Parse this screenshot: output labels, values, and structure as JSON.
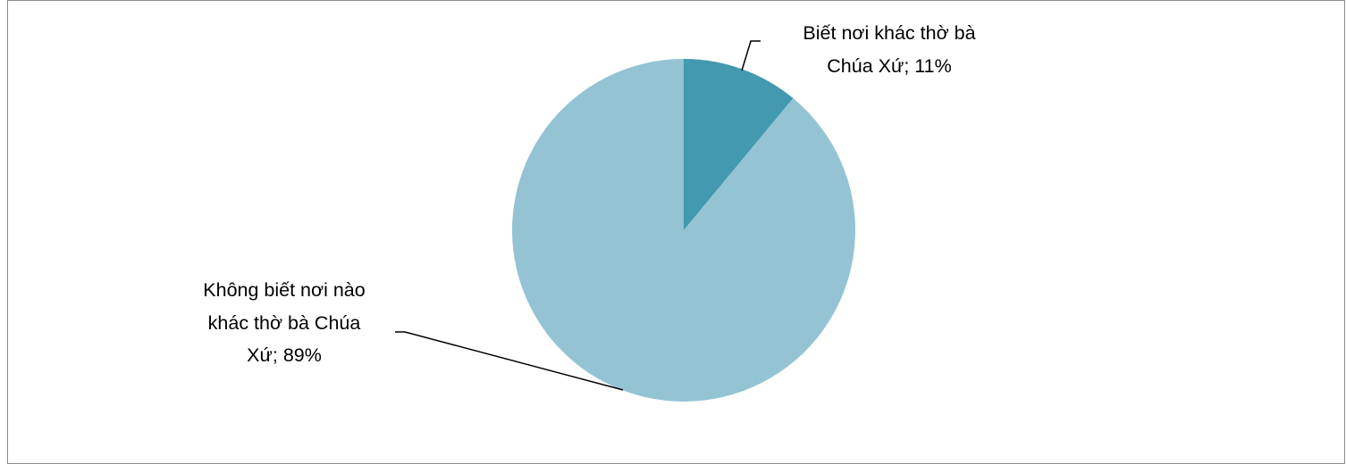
{
  "chart_data": {
    "type": "pie",
    "title": "",
    "slices": [
      {
        "label_lines": [
          "Biết nơi khác thờ bà",
          "Chúa Xứ; 11%"
        ],
        "value": 11,
        "color": "#4399ae"
      },
      {
        "label_lines": [
          "Không biết nơi nào",
          "khác thờ bà Chúa",
          "Xứ; 89%"
        ],
        "value": 89,
        "color": "#94c3d4"
      }
    ],
    "legend": "none",
    "data_labels": "outside-with-leader-lines"
  }
}
